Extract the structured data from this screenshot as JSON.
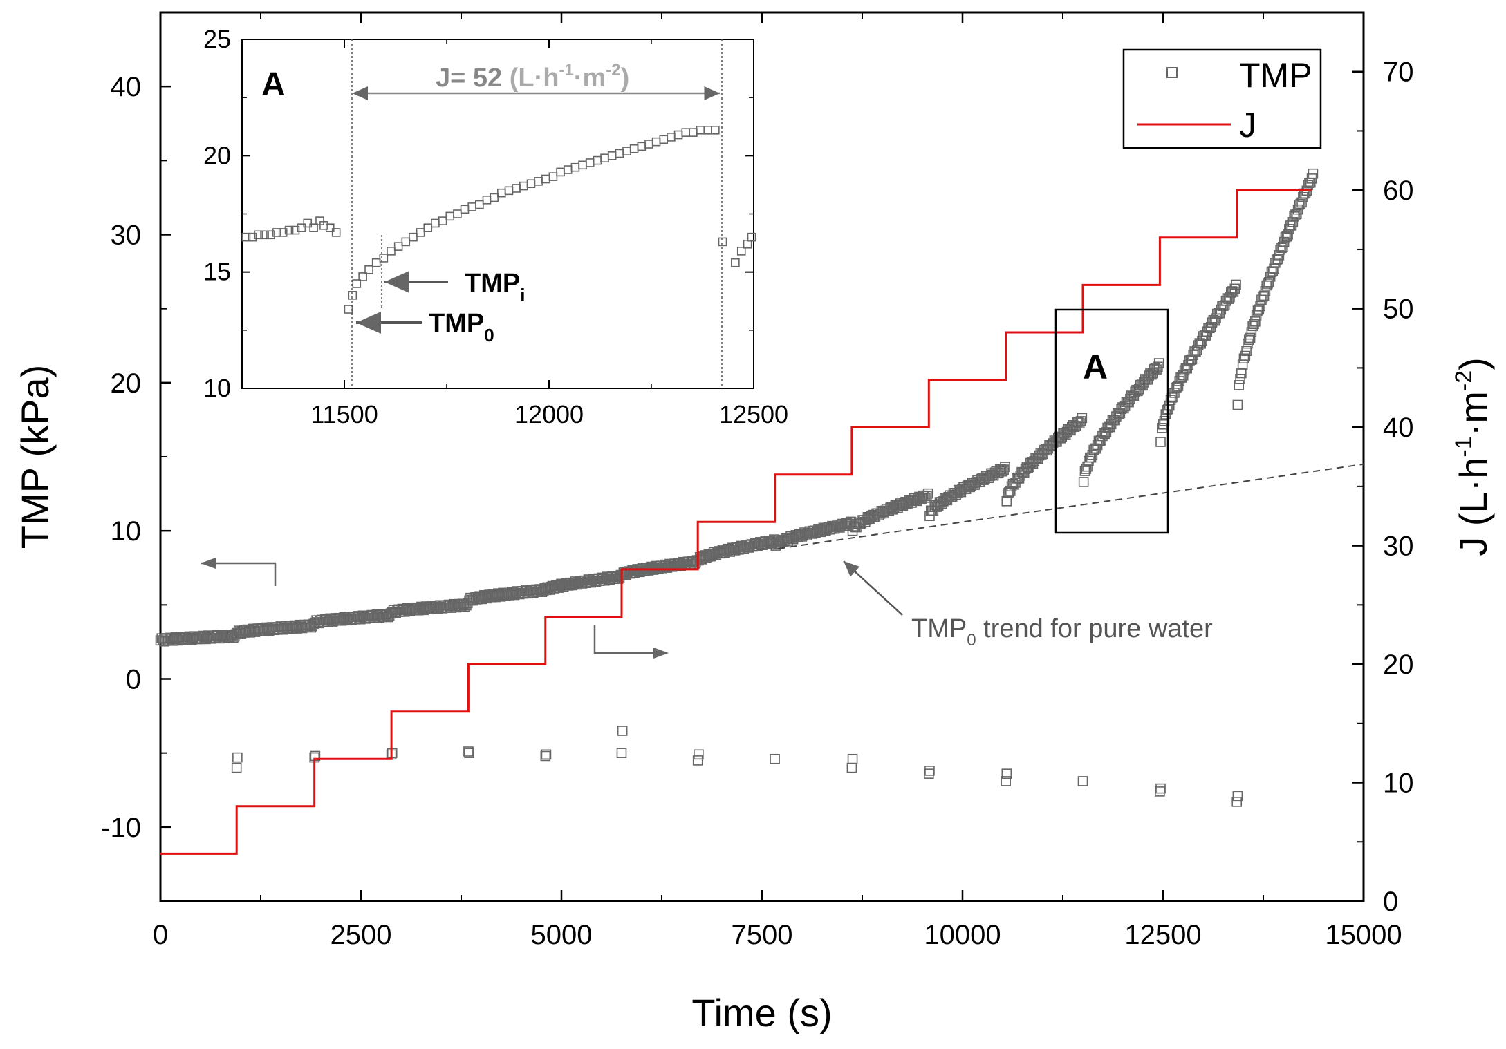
{
  "colors": {
    "tmp_marker": "#666666",
    "flux_line": "#e01010",
    "axis": "#000000",
    "annotation": "#555555",
    "background": "#ffffff"
  },
  "chart_data": [
    {
      "id": "main",
      "type": "scatter+step",
      "title": "",
      "xlabel": "Time (s)",
      "ylabel_left": "TMP (kPa)",
      "ylabel_right": {
        "base": "J (L·h",
        "sup1": "-1",
        "mid": "·m",
        "sup2": "-2",
        "end": ")"
      },
      "xlim": [
        0,
        15000
      ],
      "ylim_left": [
        -15,
        45
      ],
      "ylim_right": [
        0,
        75
      ],
      "x_ticks": [
        0,
        2500,
        5000,
        7500,
        10000,
        12500,
        15000
      ],
      "x_tick_labels": [
        "0",
        "2500",
        "5000",
        "7500",
        "10000",
        "12500",
        "15000"
      ],
      "y_left_ticks": [
        -10,
        0,
        10,
        20,
        30,
        40
      ],
      "y_left_tick_labels": [
        "-10",
        "0",
        "10",
        "20",
        "30",
        "40"
      ],
      "y_right_ticks": [
        0,
        10,
        20,
        30,
        40,
        50,
        60,
        70
      ],
      "y_right_tick_labels": [
        "0",
        "10",
        "20",
        "30",
        "40",
        "50",
        "60",
        "70"
      ],
      "legend": {
        "position": "top-right",
        "entries": [
          {
            "label": "TMP",
            "marker": "square"
          },
          {
            "label": "J",
            "marker": "line"
          }
        ]
      },
      "series": [
        {
          "name": "J",
          "axis": "right",
          "type": "step",
          "x": [
            0,
            950,
            950,
            1920,
            1920,
            2880,
            2880,
            3840,
            3840,
            4800,
            4800,
            5750,
            5750,
            6700,
            6700,
            7660,
            7660,
            8620,
            8620,
            9580,
            9580,
            10540,
            10540,
            11500,
            11500,
            12460,
            12460,
            13420,
            13420,
            14350
          ],
          "y": [
            4,
            4,
            8,
            8,
            12,
            12,
            16,
            16,
            20,
            20,
            24,
            24,
            28,
            28,
            32,
            32,
            36,
            36,
            40,
            40,
            44,
            44,
            48,
            48,
            52,
            52,
            56,
            56,
            60,
            60
          ]
        },
        {
          "name": "TMP",
          "axis": "left",
          "type": "scatter",
          "segments": [
            {
              "start": 0,
              "end": 940,
              "y0": 2.6,
              "y1": 2.9
            },
            {
              "start": 960,
              "end": 1910,
              "y0": 3.1,
              "y1": 3.6
            },
            {
              "start": 1930,
              "end": 2870,
              "y0": 3.8,
              "y1": 4.3
            },
            {
              "start": 2890,
              "end": 3830,
              "y0": 4.5,
              "y1": 5.0
            },
            {
              "start": 3850,
              "end": 4790,
              "y0": 5.3,
              "y1": 6.0
            },
            {
              "start": 4810,
              "end": 5740,
              "y0": 6.0,
              "y1": 6.9
            },
            {
              "start": 5760,
              "end": 6690,
              "y0": 7.0,
              "y1": 7.9
            },
            {
              "start": 6710,
              "end": 7650,
              "y0": 8.0,
              "y1": 9.3
            },
            {
              "start": 7670,
              "end": 8610,
              "y0": 9.0,
              "y1": 10.5
            },
            {
              "start": 8630,
              "end": 9570,
              "y0": 10.0,
              "y1": 12.4
            },
            {
              "start": 9590,
              "end": 10530,
              "y0": 11.0,
              "y1": 14.2
            },
            {
              "start": 10550,
              "end": 11490,
              "y0": 12.0,
              "y1": 17.5
            },
            {
              "start": 11510,
              "end": 12450,
              "y0": 13.3,
              "y1": 21.2
            },
            {
              "start": 12470,
              "end": 13410,
              "y0": 16.0,
              "y1": 26.5
            },
            {
              "start": 13430,
              "end": 14370,
              "y0": 18.5,
              "y1": 34.0
            }
          ],
          "transition_points": [
            {
              "x": 950,
              "y": -6.0
            },
            {
              "x": 960,
              "y": -5.3
            },
            {
              "x": 1920,
              "y": -5.3
            },
            {
              "x": 1930,
              "y": -5.2
            },
            {
              "x": 2880,
              "y": -5.1
            },
            {
              "x": 2890,
              "y": -5.0
            },
            {
              "x": 3840,
              "y": -4.9
            },
            {
              "x": 3850,
              "y": -5.0
            },
            {
              "x": 4800,
              "y": -5.2
            },
            {
              "x": 4810,
              "y": -5.1
            },
            {
              "x": 5750,
              "y": -5.0
            },
            {
              "x": 5760,
              "y": -3.5
            },
            {
              "x": 6700,
              "y": -5.5
            },
            {
              "x": 6710,
              "y": -5.1
            },
            {
              "x": 7660,
              "y": -5.4
            },
            {
              "x": 8620,
              "y": -6.0
            },
            {
              "x": 8630,
              "y": -5.4
            },
            {
              "x": 9580,
              "y": -6.4
            },
            {
              "x": 9590,
              "y": -6.2
            },
            {
              "x": 10540,
              "y": -6.9
            },
            {
              "x": 10550,
              "y": -6.4
            },
            {
              "x": 11500,
              "y": -6.9
            },
            {
              "x": 12460,
              "y": -7.6
            },
            {
              "x": 12470,
              "y": -7.4
            },
            {
              "x": 13420,
              "y": -8.3
            },
            {
              "x": 13430,
              "y": -7.9
            }
          ]
        },
        {
          "name": "TMP0 trend for pure water",
          "axis": "left",
          "type": "line-dashed",
          "x": [
            7700,
            15000
          ],
          "y": [
            8.8,
            14.5
          ]
        }
      ],
      "annotations": [
        {
          "text_main": "TMP",
          "text_sub": "0",
          "text_rest": " trend for pure water",
          "arrow_to": {
            "x": 8450,
            "y": 7.6
          }
        },
        {
          "type": "arrow",
          "direction": "left",
          "note": "TMP series uses left axis"
        },
        {
          "type": "arrow",
          "direction": "right",
          "note": "J series uses right axis"
        },
        {
          "type": "box",
          "label": "A",
          "x_range": [
            11150,
            12550
          ],
          "y_range": [
            9.8,
            25.0
          ]
        }
      ]
    },
    {
      "id": "inset",
      "type": "scatter",
      "label": "A",
      "xlim": [
        11250,
        12500
      ],
      "ylim": [
        10,
        25
      ],
      "x_ticks": [
        11500,
        12000,
        12500
      ],
      "x_tick_labels": [
        "11500",
        "12000",
        "12500"
      ],
      "y_ticks": [
        10,
        15,
        20,
        25
      ],
      "y_tick_labels": [
        "10",
        "15",
        "20",
        "25"
      ],
      "series": [
        {
          "name": "TMP",
          "points": [
            [
              11260,
              16.5
            ],
            [
              11275,
              16.5
            ],
            [
              11290,
              16.6
            ],
            [
              11305,
              16.6
            ],
            [
              11320,
              16.6
            ],
            [
              11335,
              16.7
            ],
            [
              11350,
              16.7
            ],
            [
              11365,
              16.8
            ],
            [
              11380,
              16.8
            ],
            [
              11395,
              16.9
            ],
            [
              11410,
              17.1
            ],
            [
              11425,
              16.9
            ],
            [
              11440,
              17.2
            ],
            [
              11450,
              17.0
            ],
            [
              11465,
              16.9
            ],
            [
              11480,
              16.7
            ],
            [
              11510,
              13.4
            ],
            [
              11520,
              14.0
            ],
            [
              11530,
              14.5
            ],
            [
              11545,
              14.8
            ],
            [
              11560,
              15.1
            ],
            [
              11578,
              15.4
            ],
            [
              11596,
              15.6
            ],
            [
              11614,
              15.9
            ],
            [
              11632,
              16.1
            ],
            [
              11650,
              16.3
            ],
            [
              11668,
              16.5
            ],
            [
              11686,
              16.7
            ],
            [
              11704,
              16.9
            ],
            [
              11722,
              17.1
            ],
            [
              11740,
              17.2
            ],
            [
              11758,
              17.4
            ],
            [
              11776,
              17.5
            ],
            [
              11794,
              17.7
            ],
            [
              11812,
              17.8
            ],
            [
              11830,
              17.9
            ],
            [
              11848,
              18.1
            ],
            [
              11866,
              18.2
            ],
            [
              11884,
              18.4
            ],
            [
              11902,
              18.5
            ],
            [
              11920,
              18.6
            ],
            [
              11938,
              18.7
            ],
            [
              11956,
              18.8
            ],
            [
              11974,
              18.9
            ],
            [
              11992,
              19.0
            ],
            [
              12010,
              19.1
            ],
            [
              12028,
              19.3
            ],
            [
              12046,
              19.4
            ],
            [
              12064,
              19.5
            ],
            [
              12082,
              19.6
            ],
            [
              12100,
              19.7
            ],
            [
              12118,
              19.8
            ],
            [
              12136,
              19.9
            ],
            [
              12154,
              20.0
            ],
            [
              12172,
              20.1
            ],
            [
              12190,
              20.2
            ],
            [
              12208,
              20.3
            ],
            [
              12226,
              20.4
            ],
            [
              12244,
              20.5
            ],
            [
              12262,
              20.6
            ],
            [
              12280,
              20.7
            ],
            [
              12298,
              20.8
            ],
            [
              12316,
              20.9
            ],
            [
              12334,
              21.0
            ],
            [
              12352,
              21.0
            ],
            [
              12370,
              21.1
            ],
            [
              12388,
              21.1
            ],
            [
              12406,
              21.1
            ],
            [
              12424,
              16.3
            ],
            [
              12455,
              15.4
            ],
            [
              12470,
              15.9
            ],
            [
              12485,
              16.2
            ],
            [
              12495,
              16.5
            ]
          ]
        }
      ],
      "annotations": [
        {
          "text_main": "J= 52 ",
          "text_unit": "(L·h",
          "sup1": "-1",
          "mid": "·m",
          "sup2": "-2",
          "end": ")",
          "from_x": 11510,
          "to_x": 12420
        },
        {
          "text_main": "TMP",
          "text_sub": "i",
          "points_to_x": 11590
        },
        {
          "text_main": "TMP",
          "text_sub": "0",
          "points_to_x": 11510
        }
      ]
    }
  ]
}
